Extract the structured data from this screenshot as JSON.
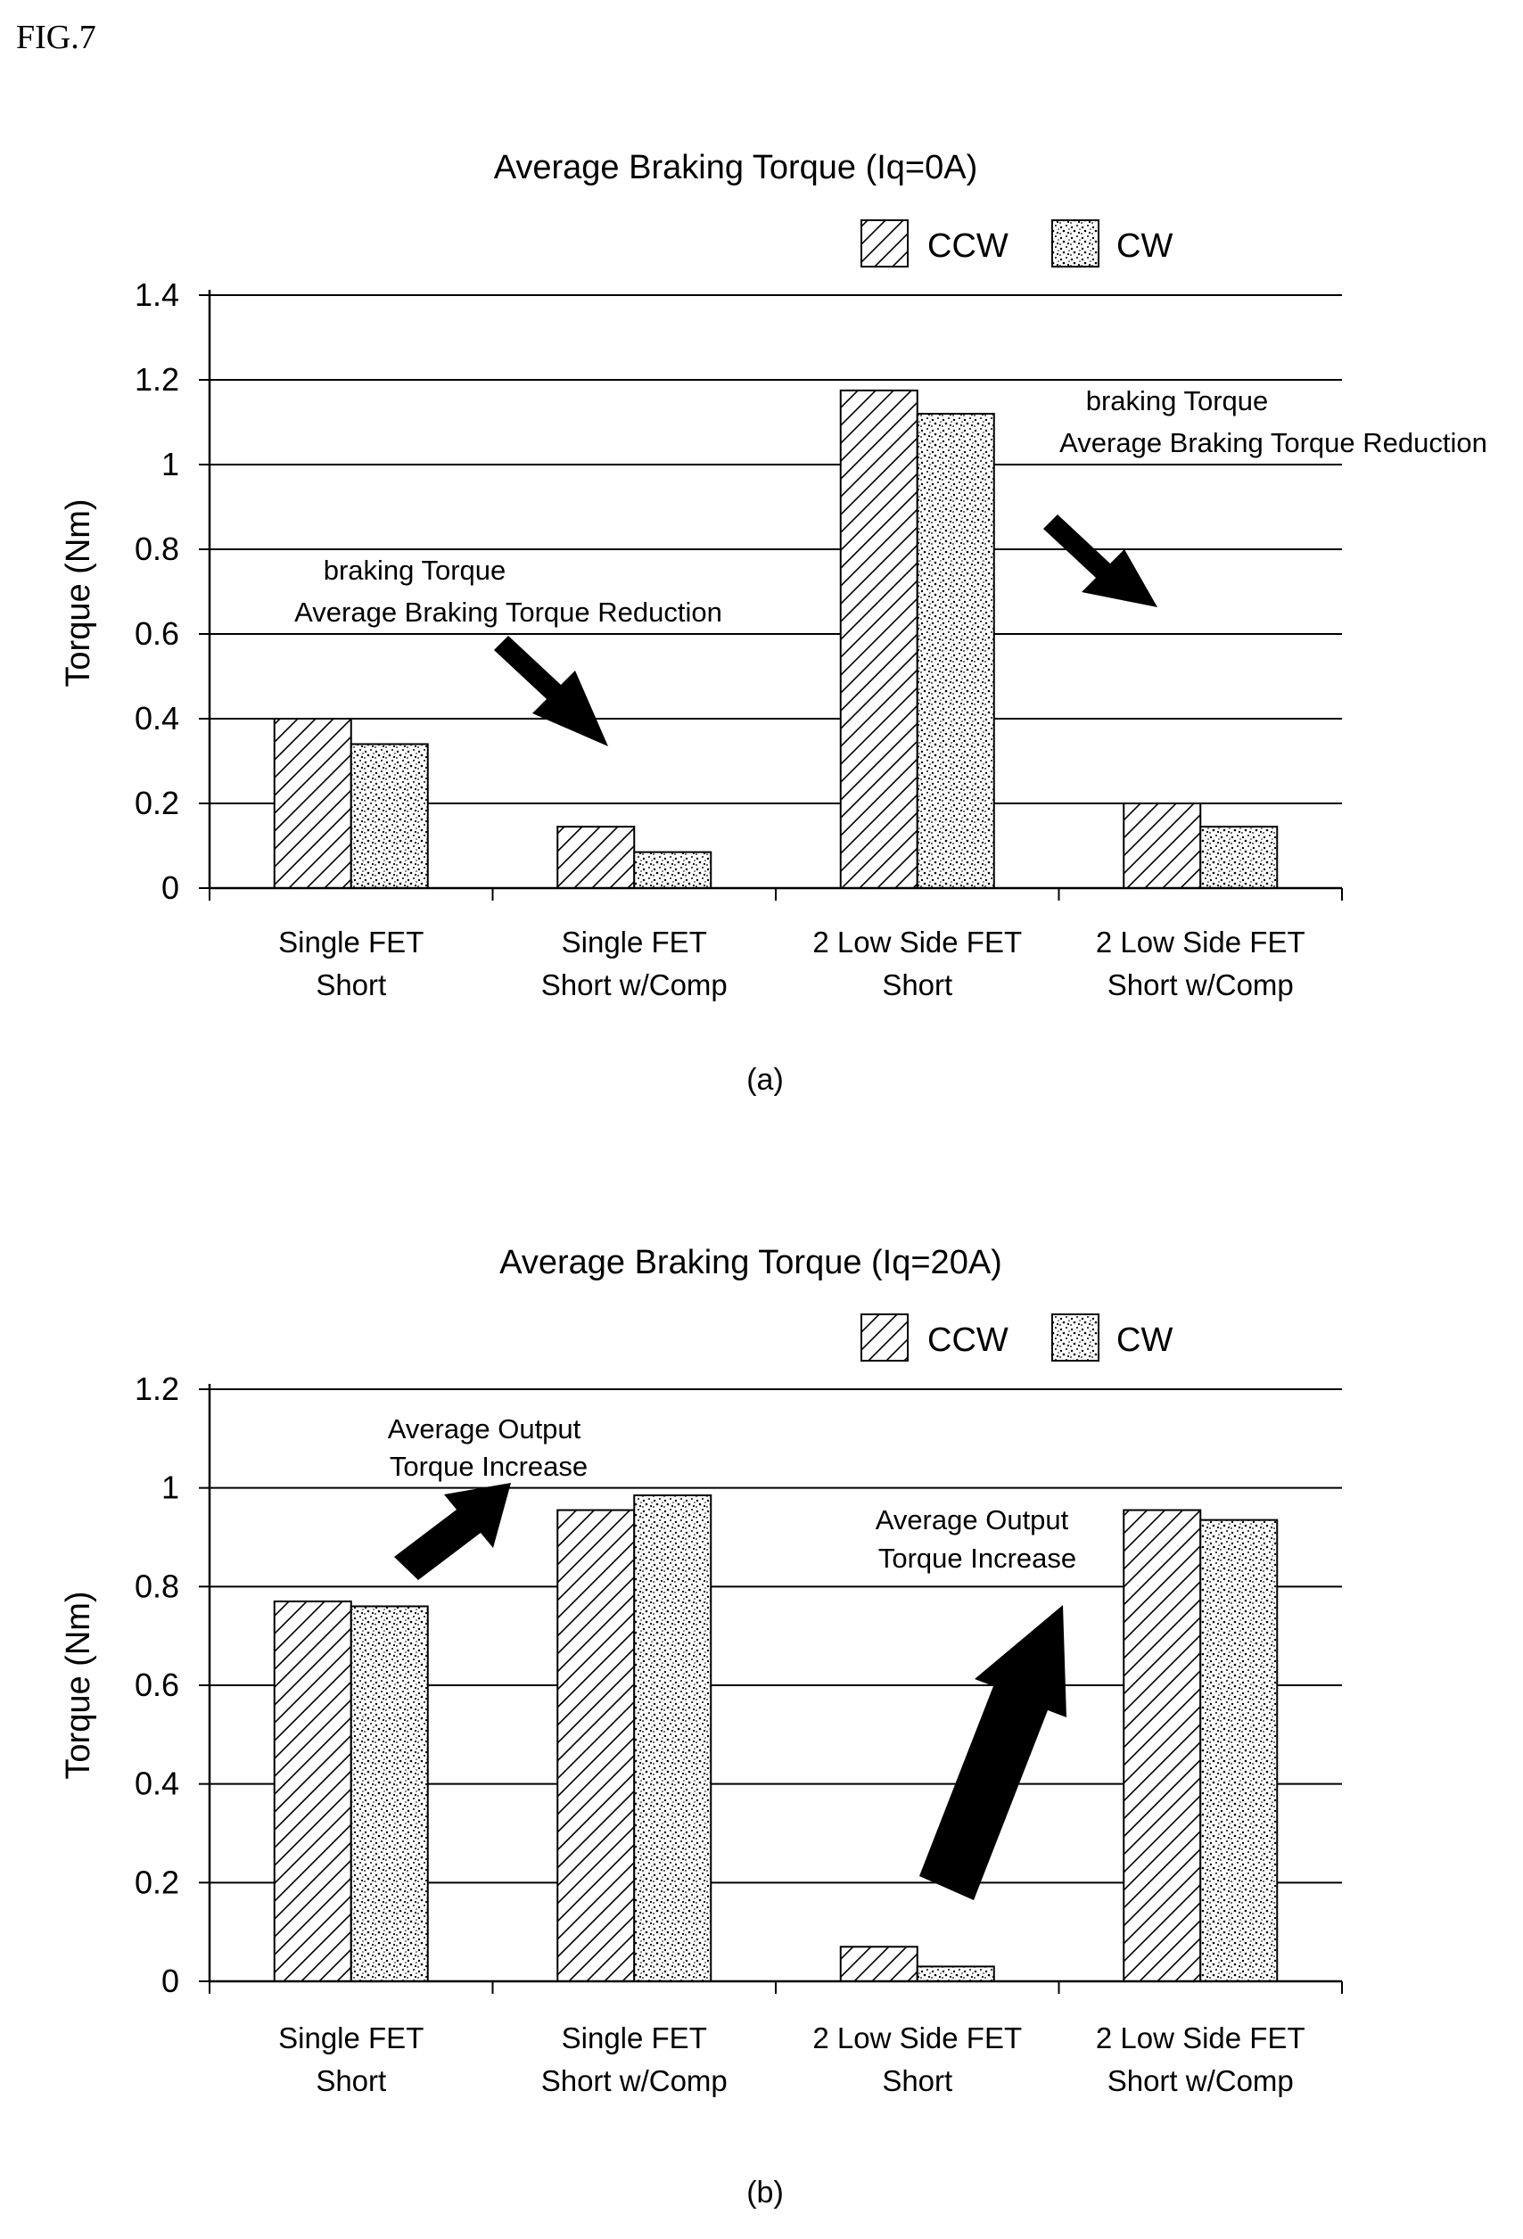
{
  "figure_label": "FIG.7",
  "chart_data": [
    {
      "type": "bar",
      "panel_label": "(a)",
      "title": "Average Braking Torque (Iq=0A)",
      "ylabel": "Torque (Nm)",
      "xlabel": "",
      "ylim": [
        0,
        1.4
      ],
      "yticks": [
        "0",
        "0.2",
        "0.4",
        "0.6",
        "0.8",
        "1",
        "1.2",
        "1.4"
      ],
      "grid": true,
      "legend_position": "top-right",
      "categories": [
        [
          "Single FET",
          "Short"
        ],
        [
          "Single FET",
          "Short w/Comp"
        ],
        [
          "2 Low Side FET",
          "Short"
        ],
        [
          "2 Low Side FET",
          "Short w/Comp"
        ]
      ],
      "series": [
        {
          "name": "CCW",
          "pattern": "hatch",
          "values": [
            0.4,
            0.145,
            1.175,
            0.2
          ]
        },
        {
          "name": "CW",
          "pattern": "dots",
          "values": [
            0.34,
            0.085,
            1.12,
            0.145
          ]
        }
      ],
      "annotations": [
        {
          "lines": [
            "braking Torque",
            "Average Braking Torque Reduction"
          ]
        },
        {
          "lines": [
            "braking Torque",
            "Average Braking Torque Reduction"
          ]
        }
      ]
    },
    {
      "type": "bar",
      "panel_label": "(b)",
      "title": "Average Braking Torque (Iq=20A)",
      "ylabel": "Torque (Nm)",
      "xlabel": "",
      "ylim": [
        0,
        1.2
      ],
      "yticks": [
        "0",
        "0.2",
        "0.4",
        "0.6",
        "0.8",
        "1",
        "1.2"
      ],
      "grid": true,
      "legend_position": "top-right",
      "categories": [
        [
          "Single FET",
          "Short"
        ],
        [
          "Single FET",
          "Short w/Comp"
        ],
        [
          "2 Low Side FET",
          "Short"
        ],
        [
          "2 Low Side FET",
          "Short w/Comp"
        ]
      ],
      "series": [
        {
          "name": "CCW",
          "pattern": "hatch",
          "values": [
            0.77,
            0.955,
            0.07,
            0.955
          ]
        },
        {
          "name": "CW",
          "pattern": "dots",
          "values": [
            0.76,
            0.985,
            0.03,
            0.935
          ]
        }
      ],
      "annotations": [
        {
          "lines": [
            "Average Output",
            "Torque Increase"
          ]
        },
        {
          "lines": [
            "Average Output",
            "Torque Increase"
          ]
        }
      ]
    }
  ]
}
